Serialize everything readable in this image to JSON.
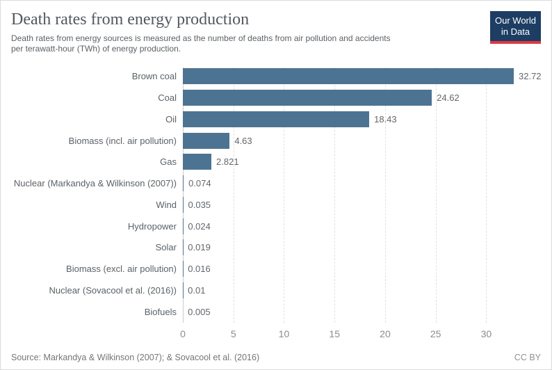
{
  "header": {
    "title": "Death rates from energy production",
    "subtitle": "Death rates from energy sources is measured as the number of deaths from air pollution and accidents per terawatt-hour (TWh) of energy production.",
    "logo": {
      "line1": "Our World",
      "line2": "in Data",
      "bg_color": "#1d3d63",
      "accent_color": "#dc3941"
    }
  },
  "chart_data": {
    "type": "bar",
    "orientation": "horizontal",
    "title": "Death rates from energy production",
    "xlabel": "",
    "ylabel": "",
    "categories": [
      "Brown coal",
      "Coal",
      "Oil",
      "Biomass (incl. air pollution)",
      "Gas",
      "Nuclear (Markandya & Wilkinson (2007))",
      "Wind",
      "Hydropower",
      "Solar",
      "Biomass (excl. air pollution)",
      "Nuclear (Sovacool et al. (2016))",
      "Biofuels"
    ],
    "values": [
      32.72,
      24.62,
      18.43,
      4.63,
      2.821,
      0.074,
      0.035,
      0.024,
      0.019,
      0.016,
      0.01,
      0.005
    ],
    "value_labels": [
      "32.72",
      "24.62",
      "18.43",
      "4.63",
      "2.821",
      "0.074",
      "0.035",
      "0.024",
      "0.019",
      "0.016",
      "0.01",
      "0.005"
    ],
    "x_ticks": [
      0,
      5,
      10,
      15,
      20,
      25,
      30
    ],
    "xlim": [
      0,
      35.4
    ],
    "grid": "dashed-vertical",
    "legend": "none",
    "bar_color": "#4d7392"
  },
  "footer": {
    "source": "Source: Markandya & Wilkinson (2007); & Sovacool et al. (2016)",
    "license": "CC BY"
  }
}
